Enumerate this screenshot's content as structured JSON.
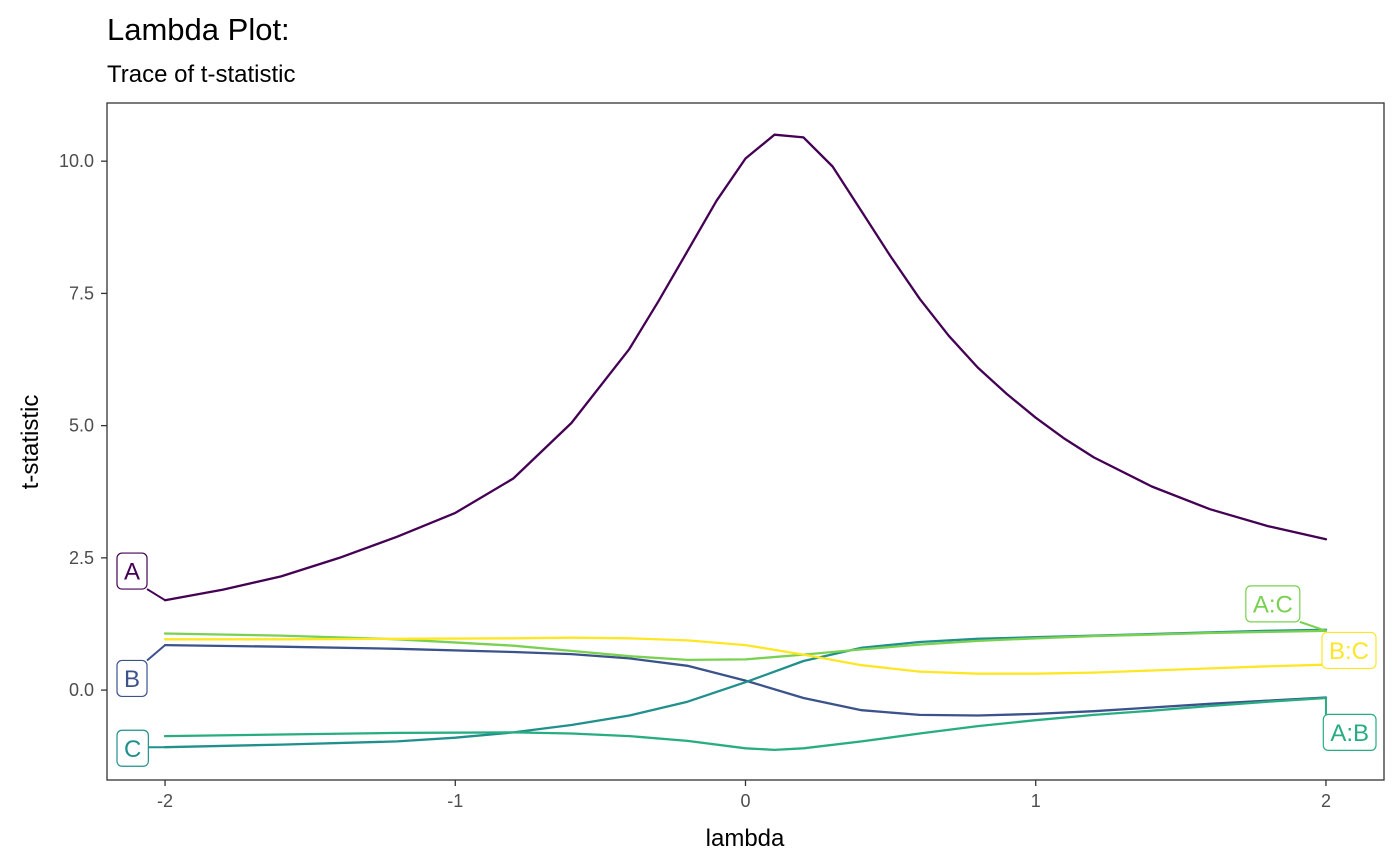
{
  "chart_data": {
    "type": "line",
    "title": "Lambda Plot:",
    "subtitle": "Trace of t-statistic",
    "xlabel": "lambda",
    "ylabel": "t-statistic",
    "xlim": [
      -2.2,
      2.2
    ],
    "ylim": [
      -1.7,
      11.1
    ],
    "xticks": [
      -2,
      -1,
      0,
      1,
      2
    ],
    "xtick_labels": [
      "-2",
      "-1",
      "0",
      "1",
      "2"
    ],
    "yticks": [
      0,
      2.5,
      5,
      7.5,
      10
    ],
    "ytick_labels": [
      "0.0",
      "2.5",
      "5.0",
      "7.5",
      "10.0"
    ],
    "grid": false,
    "legend": "direct-labels",
    "series": [
      {
        "name": "A",
        "color": "#440154",
        "label_side": "left",
        "label_y": 2.25,
        "x": [
          -2,
          -1.8,
          -1.6,
          -1.4,
          -1.2,
          -1,
          -0.8,
          -0.6,
          -0.4,
          -0.3,
          -0.2,
          -0.1,
          0,
          0.1,
          0.2,
          0.3,
          0.4,
          0.5,
          0.6,
          0.7,
          0.8,
          0.9,
          1,
          1.1,
          1.2,
          1.4,
          1.6,
          1.8,
          2
        ],
        "y": [
          1.7,
          1.9,
          2.15,
          2.5,
          2.9,
          3.35,
          4.0,
          5.05,
          6.45,
          7.35,
          8.3,
          9.25,
          10.05,
          10.5,
          10.45,
          9.9,
          9.05,
          8.2,
          7.4,
          6.7,
          6.1,
          5.6,
          5.15,
          4.75,
          4.4,
          3.85,
          3.42,
          3.1,
          2.85
        ]
      },
      {
        "name": "B",
        "color": "#3b528b",
        "label_side": "left",
        "label_y": 0.22,
        "x": [
          -2,
          -1.6,
          -1.2,
          -0.8,
          -0.6,
          -0.4,
          -0.2,
          0,
          0.2,
          0.4,
          0.6,
          0.8,
          1,
          1.2,
          1.4,
          1.6,
          1.8,
          2
        ],
        "y": [
          0.85,
          0.82,
          0.78,
          0.72,
          0.68,
          0.6,
          0.46,
          0.18,
          -0.15,
          -0.38,
          -0.47,
          -0.48,
          -0.45,
          -0.4,
          -0.33,
          -0.26,
          -0.2,
          -0.14
        ]
      },
      {
        "name": "C",
        "color": "#21908c",
        "label_side": "left",
        "label_y": -1.1,
        "x": [
          -2,
          -1.6,
          -1.2,
          -1,
          -0.8,
          -0.6,
          -0.4,
          -0.2,
          0,
          0.2,
          0.4,
          0.6,
          0.8,
          1,
          1.2,
          1.4,
          1.6,
          1.8,
          2
        ],
        "y": [
          -1.08,
          -1.03,
          -0.97,
          -0.9,
          -0.8,
          -0.66,
          -0.48,
          -0.22,
          0.15,
          0.55,
          0.8,
          0.91,
          0.97,
          1.0,
          1.03,
          1.06,
          1.09,
          1.12,
          1.14
        ]
      },
      {
        "name": "A:B",
        "color": "#27ad81",
        "label_side": "right",
        "label_y": -0.8,
        "x": [
          -2,
          -1.6,
          -1.2,
          -0.8,
          -0.6,
          -0.4,
          -0.2,
          0,
          0.1,
          0.2,
          0.4,
          0.6,
          0.8,
          1,
          1.2,
          1.4,
          1.6,
          1.8,
          2
        ],
        "y": [
          -0.87,
          -0.84,
          -0.81,
          -0.8,
          -0.82,
          -0.87,
          -0.96,
          -1.1,
          -1.13,
          -1.1,
          -0.97,
          -0.82,
          -0.68,
          -0.57,
          -0.47,
          -0.39,
          -0.3,
          -0.22,
          -0.15
        ]
      },
      {
        "name": "A:C",
        "color": "#7ad151",
        "label_side": "right",
        "label_y": 1.63,
        "x": [
          -2,
          -1.6,
          -1.2,
          -0.8,
          -0.6,
          -0.4,
          -0.2,
          0,
          0.2,
          0.4,
          0.6,
          0.8,
          1,
          1.2,
          1.4,
          1.6,
          1.8,
          2
        ],
        "y": [
          1.07,
          1.03,
          0.96,
          0.84,
          0.74,
          0.64,
          0.57,
          0.58,
          0.67,
          0.77,
          0.86,
          0.93,
          0.98,
          1.02,
          1.05,
          1.08,
          1.1,
          1.12
        ]
      },
      {
        "name": "B:C",
        "color": "#fde725",
        "label_side": "right",
        "label_y": 0.75,
        "x": [
          -2,
          -1.6,
          -1.2,
          -0.8,
          -0.6,
          -0.4,
          -0.2,
          0,
          0.2,
          0.4,
          0.6,
          0.8,
          1,
          1.2,
          1.4,
          1.6,
          1.8,
          2
        ],
        "y": [
          0.96,
          0.96,
          0.97,
          0.98,
          0.99,
          0.98,
          0.94,
          0.85,
          0.67,
          0.47,
          0.35,
          0.31,
          0.31,
          0.33,
          0.37,
          0.41,
          0.45,
          0.48
        ]
      }
    ]
  }
}
